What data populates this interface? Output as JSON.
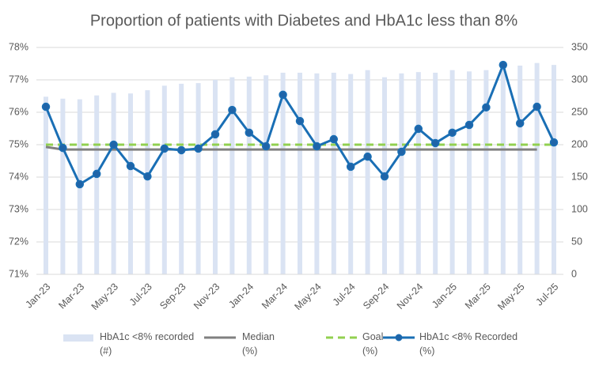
{
  "chart_data": {
    "type": "combo",
    "title": "Proportion of patients with Diabetes and HbA1c less than 8%",
    "categories": [
      "Jan-23",
      null,
      "Mar-23",
      null,
      "May-23",
      null,
      "Jul-23",
      null,
      "Sep-23",
      null,
      "Nov-23",
      null,
      "Jan-24",
      null,
      "Mar-24",
      null,
      "May-24",
      null,
      "Jul-24",
      null,
      "Sep-24",
      null,
      "Nov-24",
      null,
      "Jan-25",
      null,
      "Mar-25",
      null,
      "May-25",
      null,
      "Jul-25"
    ],
    "ylim": [
      71,
      78
    ],
    "yticks": [
      {
        "value": 71,
        "label": "71%"
      },
      {
        "value": 72,
        "label": "72%"
      },
      {
        "value": 73,
        "label": "73%"
      },
      {
        "value": 74,
        "label": "74%"
      },
      {
        "value": 75,
        "label": "75%"
      },
      {
        "value": 76,
        "label": "76%"
      },
      {
        "value": 77,
        "label": "77%"
      },
      {
        "value": 78,
        "label": "78%"
      }
    ],
    "y2lim": [
      0,
      350
    ],
    "y2ticks": [
      0,
      50,
      100,
      150,
      200,
      250,
      300,
      350
    ],
    "grid": true,
    "legend": "bottom",
    "series": [
      {
        "name": "HbA1c <8% recorded\n(#)",
        "type": "bar",
        "axis": "y2",
        "color": "#dae3f3",
        "values": [
          274,
          271,
          270,
          276,
          280,
          279,
          284,
          291,
          294,
          295,
          300,
          304,
          305,
          307,
          311,
          311,
          310,
          311,
          309,
          315,
          304,
          310,
          312,
          311,
          315,
          313,
          315,
          318,
          322,
          326,
          323
        ]
      },
      {
        "name": "Median\n(%)",
        "type": "line",
        "color": "#808080",
        "values": [
          74.93,
          74.85,
          74.85,
          74.85,
          74.85,
          74.85,
          74.85,
          74.85,
          74.85,
          74.85,
          74.85,
          74.85,
          74.85,
          74.85,
          74.85,
          74.85,
          74.85,
          74.85,
          74.85,
          74.85,
          74.85,
          74.85,
          74.85,
          74.85,
          74.85,
          74.85,
          74.85,
          74.85,
          74.85,
          74.85,
          null
        ]
      },
      {
        "name": "Goal\n(%)",
        "type": "line",
        "dashed": true,
        "color": "#92d050",
        "values": [
          75,
          75,
          75,
          75,
          75,
          75,
          75,
          75,
          75,
          75,
          75,
          75,
          75,
          75,
          75,
          75,
          75,
          75,
          75,
          75,
          75,
          75,
          75,
          75,
          75,
          75,
          75,
          75,
          75,
          75,
          75
        ]
      },
      {
        "name": "HbA1c <8% Recorded\n(%)",
        "type": "line",
        "markers": true,
        "color": "#1a6fb5",
        "values": [
          76.17,
          74.9,
          73.78,
          74.1,
          75.0,
          74.34,
          74.02,
          74.88,
          74.83,
          74.88,
          75.32,
          76.07,
          75.37,
          74.95,
          76.54,
          75.73,
          74.95,
          75.17,
          74.32,
          74.63,
          74.02,
          74.78,
          75.49,
          75.05,
          75.37,
          75.61,
          76.15,
          77.46,
          75.66,
          76.17,
          75.07
        ]
      }
    ]
  }
}
